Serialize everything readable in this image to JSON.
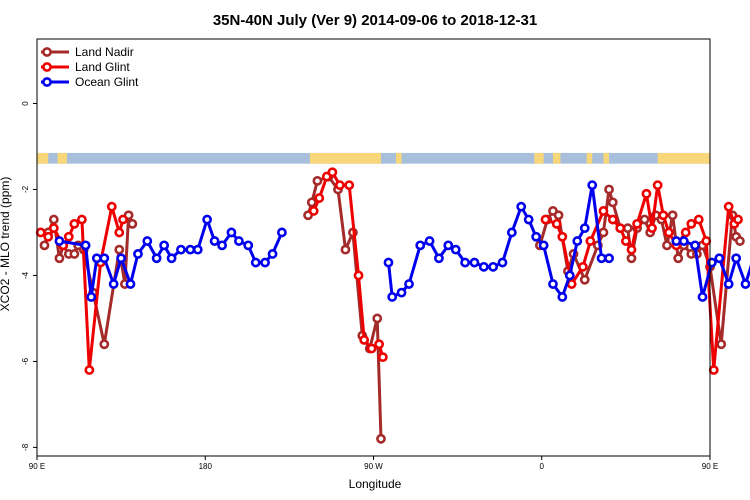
{
  "chart_data": {
    "type": "line",
    "title": "35N-40N July (Ver 9)   2014-09-06 to 2018-12-31",
    "xlabel": "Longitude",
    "ylabel": "XCO2 - MLO trend (ppm)",
    "xlim": [
      90,
      450
    ],
    "ylim": [
      -8.2,
      1.5
    ],
    "x_ticks": [
      {
        "value": 90,
        "label": "90 E"
      },
      {
        "value": 180,
        "label": "180"
      },
      {
        "value": 270,
        "label": "90 W"
      },
      {
        "value": 360,
        "label": "0"
      },
      {
        "value": 450,
        "label": "90 E"
      },
      {
        "value": 540,
        "label": "180"
      }
    ],
    "y_ticks": [
      {
        "value": 0,
        "label": "0"
      },
      {
        "value": -2,
        "label": "-2"
      },
      {
        "value": -4,
        "label": "-4"
      },
      {
        "value": -6,
        "label": "-6"
      },
      {
        "value": -8,
        "label": "-8"
      }
    ],
    "legend_position": "top-left",
    "land_ocean_strip": {
      "y_range": [
        -1.4,
        -1.15
      ],
      "ocean_color": "#a8bfdc",
      "land_color": "#f7d77a",
      "land_segments": [
        [
          90,
          96
        ],
        [
          101,
          106
        ],
        [
          236,
          274
        ],
        [
          282,
          285
        ],
        [
          356,
          361
        ],
        [
          366,
          370
        ],
        [
          384,
          387
        ],
        [
          393,
          396
        ],
        [
          422,
          450
        ]
      ]
    },
    "series": [
      {
        "name": "Land Nadir",
        "color": "#a52a2a",
        "segments": [
          [
            [
              94,
              -3.3
            ],
            [
              96,
              -3.0
            ],
            [
              99,
              -2.7
            ],
            [
              102,
              -3.6
            ],
            [
              104,
              -3.3
            ],
            [
              107,
              -3.5
            ],
            [
              110,
              -3.5
            ],
            [
              112,
              -3.3
            ],
            [
              115,
              -3.4
            ],
            [
              120,
              -4.4
            ],
            [
              126,
              -5.6
            ],
            [
              134,
              -3.4
            ],
            [
              137,
              -4.2
            ],
            [
              139,
              -2.6
            ],
            [
              141,
              -2.8
            ]
          ],
          [
            [
              235,
              -2.6
            ],
            [
              237,
              -2.3
            ],
            [
              240,
              -1.8
            ],
            [
              246,
              -1.7
            ],
            [
              251,
              -2.0
            ],
            [
              255,
              -3.4
            ],
            [
              259,
              -3.0
            ],
            [
              264,
              -5.4
            ],
            [
              268,
              -5.7
            ],
            [
              272,
              -5.0
            ],
            [
              274,
              -7.8
            ]
          ],
          [
            [
              359,
              -3.3
            ],
            [
              363,
              -2.7
            ],
            [
              366,
              -2.5
            ],
            [
              369,
              -2.6
            ],
            [
              374,
              -3.9
            ],
            [
              377,
              -3.5
            ],
            [
              383,
              -4.1
            ],
            [
              390,
              -3.3
            ],
            [
              393,
              -3.0
            ],
            [
              396,
              -2.0
            ],
            [
              398,
              -2.3
            ],
            [
              402,
              -2.9
            ],
            [
              406,
              -2.9
            ],
            [
              408,
              -3.6
            ],
            [
              411,
              -2.9
            ],
            [
              415,
              -2.7
            ],
            [
              418,
              -3.0
            ],
            [
              421,
              -2.6
            ],
            [
              424,
              -2.7
            ],
            [
              427,
              -3.3
            ],
            [
              430,
              -2.6
            ],
            [
              433,
              -3.6
            ],
            [
              436,
              -3.3
            ],
            [
              440,
              -3.5
            ],
            [
              443,
              -3.5
            ],
            [
              446,
              -3.3
            ],
            [
              450,
              -3.8
            ],
            [
              456,
              -5.6
            ],
            [
              462,
              -2.6
            ],
            [
              464,
              -3.1
            ],
            [
              466,
              -3.2
            ]
          ]
        ]
      },
      {
        "name": "Land Glint",
        "color": "#ee0000",
        "segments": [
          [
            [
              92,
              -3.0
            ],
            [
              96,
              -3.1
            ],
            [
              99,
              -2.9
            ],
            [
              104,
              -3.3
            ],
            [
              107,
              -3.1
            ],
            [
              110,
              -2.8
            ],
            [
              114,
              -2.7
            ],
            [
              118,
              -6.2
            ],
            [
              124,
              -3.7
            ],
            [
              130,
              -2.4
            ],
            [
              134,
              -3.0
            ],
            [
              136,
              -2.7
            ]
          ],
          [
            [
              238,
              -2.5
            ],
            [
              241,
              -2.2
            ],
            [
              245,
              -1.7
            ],
            [
              248,
              -1.6
            ],
            [
              252,
              -1.9
            ],
            [
              257,
              -1.9
            ],
            [
              262,
              -4.0
            ],
            [
              265,
              -5.5
            ],
            [
              269,
              -5.7
            ],
            [
              273,
              -5.6
            ],
            [
              275,
              -5.9
            ]
          ],
          [
            [
              362,
              -2.7
            ],
            [
              368,
              -2.8
            ],
            [
              371,
              -3.1
            ],
            [
              376,
              -4.2
            ],
            [
              382,
              -3.8
            ],
            [
              386,
              -3.2
            ],
            [
              393,
              -2.5
            ],
            [
              398,
              -2.7
            ],
            [
              402,
              -2.9
            ],
            [
              405,
              -3.2
            ],
            [
              408,
              -3.4
            ],
            [
              411,
              -2.8
            ],
            [
              416,
              -2.1
            ],
            [
              419,
              -2.9
            ],
            [
              422,
              -1.9
            ],
            [
              425,
              -2.6
            ],
            [
              428,
              -3.0
            ],
            [
              432,
              -3.3
            ],
            [
              437,
              -3.0
            ],
            [
              440,
              -2.8
            ],
            [
              444,
              -2.7
            ],
            [
              448,
              -3.2
            ],
            [
              452,
              -6.2
            ],
            [
              460,
              -2.4
            ],
            [
              463,
              -2.8
            ],
            [
              465,
              -2.7
            ]
          ]
        ]
      },
      {
        "name": "Ocean Glint",
        "color": "#0000ee",
        "segments": [
          [
            [
              102,
              -3.2
            ],
            [
              116,
              -3.3
            ],
            [
              119,
              -4.5
            ],
            [
              122,
              -3.6
            ],
            [
              126,
              -3.6
            ],
            [
              131,
              -4.2
            ],
            [
              135,
              -3.6
            ],
            [
              140,
              -4.2
            ],
            [
              144,
              -3.5
            ],
            [
              149,
              -3.2
            ],
            [
              154,
              -3.6
            ],
            [
              158,
              -3.3
            ],
            [
              162,
              -3.6
            ],
            [
              167,
              -3.4
            ],
            [
              172,
              -3.4
            ],
            [
              176,
              -3.4
            ],
            [
              181,
              -2.7
            ],
            [
              185,
              -3.2
            ],
            [
              189,
              -3.3
            ],
            [
              194,
              -3.0
            ],
            [
              198,
              -3.2
            ],
            [
              203,
              -3.3
            ],
            [
              207,
              -3.7
            ],
            [
              212,
              -3.7
            ],
            [
              216,
              -3.5
            ],
            [
              221,
              -3.0
            ]
          ],
          [
            [
              278,
              -3.7
            ],
            [
              280,
              -4.5
            ],
            [
              285,
              -4.4
            ],
            [
              289,
              -4.2
            ],
            [
              295,
              -3.3
            ],
            [
              300,
              -3.2
            ],
            [
              305,
              -3.6
            ],
            [
              310,
              -3.3
            ],
            [
              314,
              -3.4
            ],
            [
              319,
              -3.7
            ],
            [
              324,
              -3.7
            ],
            [
              329,
              -3.8
            ],
            [
              334,
              -3.8
            ],
            [
              339,
              -3.7
            ],
            [
              344,
              -3.0
            ],
            [
              349,
              -2.4
            ],
            [
              353,
              -2.7
            ],
            [
              357,
              -3.1
            ],
            [
              361,
              -3.3
            ],
            [
              366,
              -4.2
            ],
            [
              371,
              -4.5
            ],
            [
              375,
              -4.0
            ],
            [
              379,
              -3.2
            ],
            [
              383,
              -2.9
            ],
            [
              387,
              -1.9
            ],
            [
              392,
              -3.6
            ],
            [
              396,
              -3.6
            ]
          ],
          [
            [
              432,
              -3.2
            ],
            [
              436,
              -3.2
            ],
            [
              442,
              -3.3
            ],
            [
              446,
              -4.5
            ],
            [
              451,
              -3.7
            ],
            [
              455,
              -3.6
            ],
            [
              460,
              -4.2
            ],
            [
              464,
              -3.6
            ],
            [
              469,
              -4.2
            ],
            [
              474,
              -3.5
            ],
            [
              479,
              -3.2
            ],
            [
              483,
              -3.6
            ],
            [
              487,
              -3.3
            ],
            [
              492,
              -3.6
            ],
            [
              496,
              -3.4
            ]
          ]
        ]
      }
    ]
  }
}
